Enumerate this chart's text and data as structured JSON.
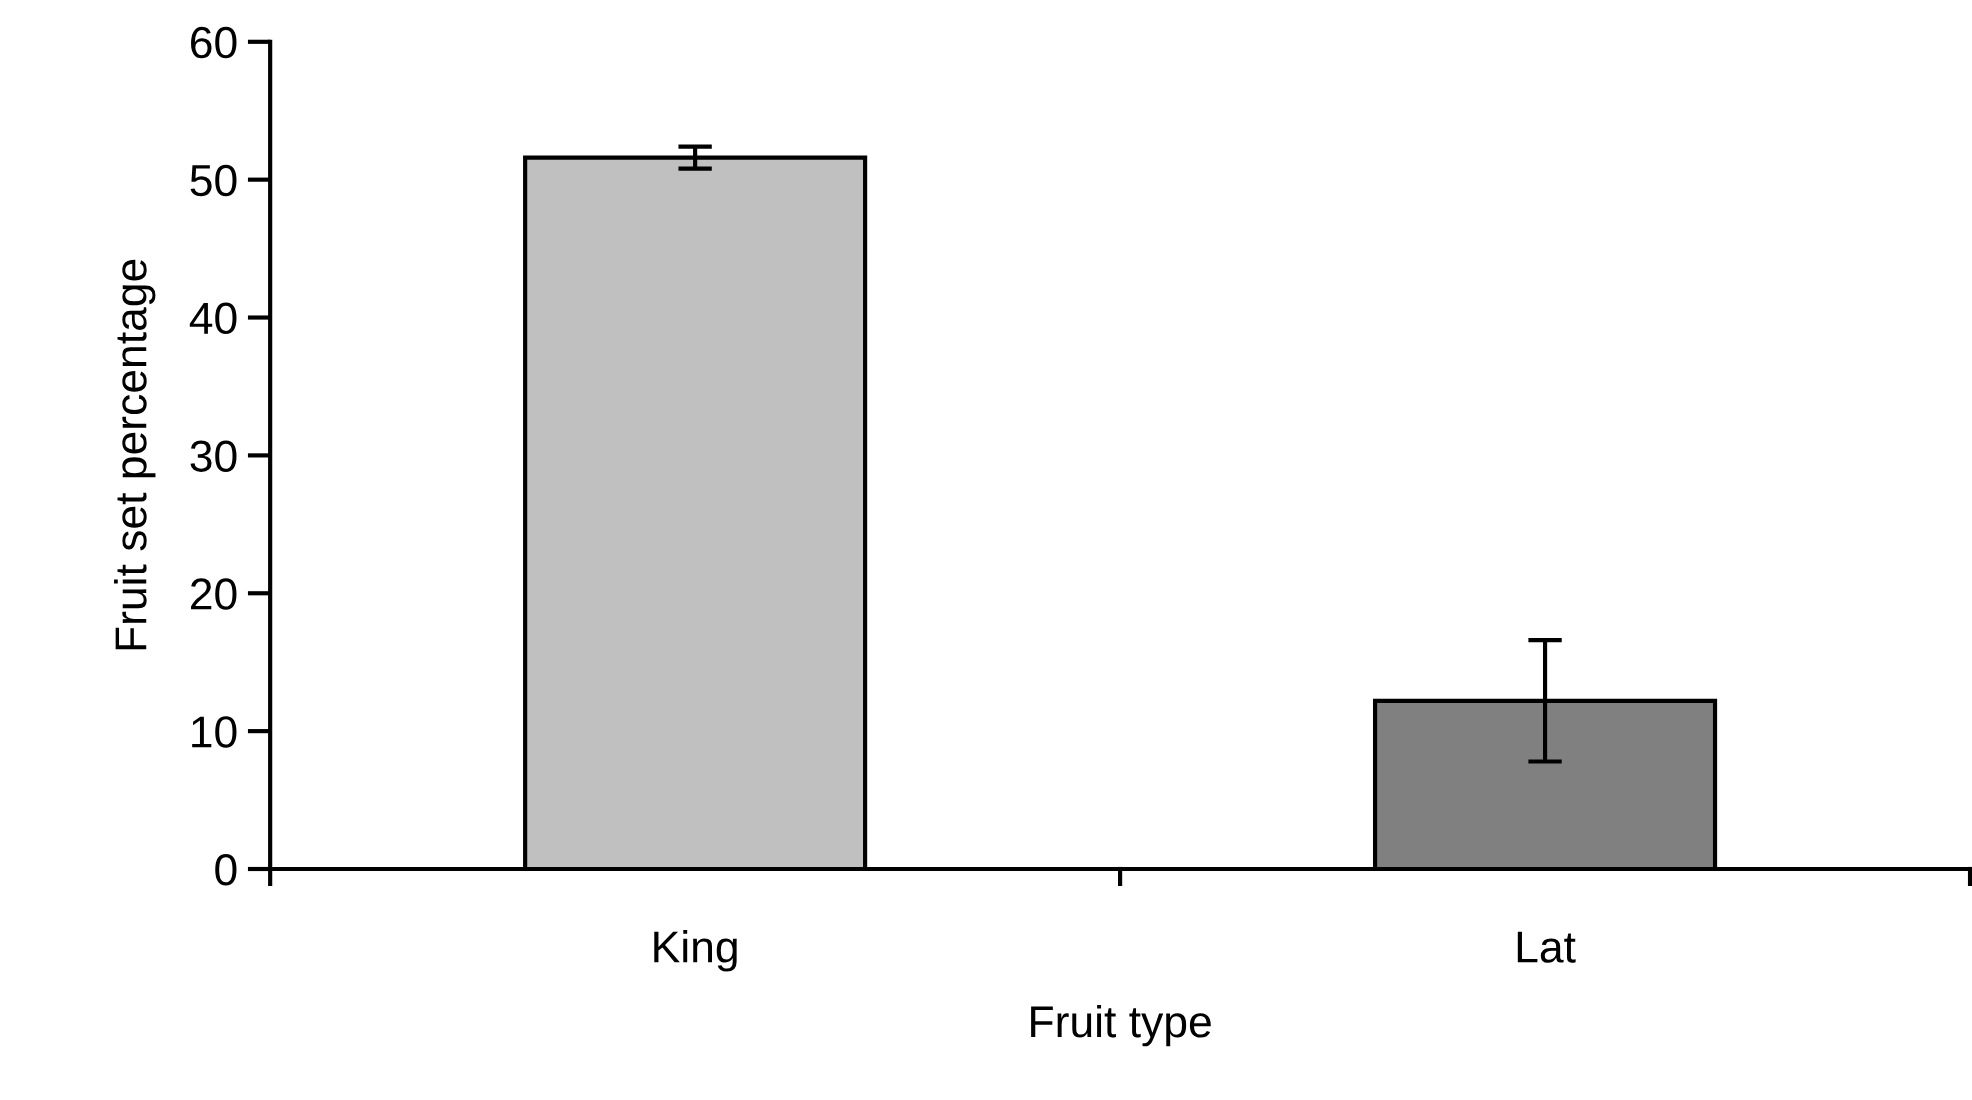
{
  "chart_data": {
    "type": "bar",
    "xlabel": "Fruit type",
    "ylabel": "Fruit set percentage",
    "categories": [
      "King",
      "Lat"
    ],
    "values": [
      51.6,
      12.2
    ],
    "errors": [
      0.8,
      4.4
    ],
    "colors": [
      "#c0c0c0",
      "#808080"
    ],
    "ylim": [
      0,
      60
    ],
    "yticks": [
      0,
      10,
      20,
      30,
      40,
      50,
      60
    ],
    "grid": false,
    "legend": false
  }
}
